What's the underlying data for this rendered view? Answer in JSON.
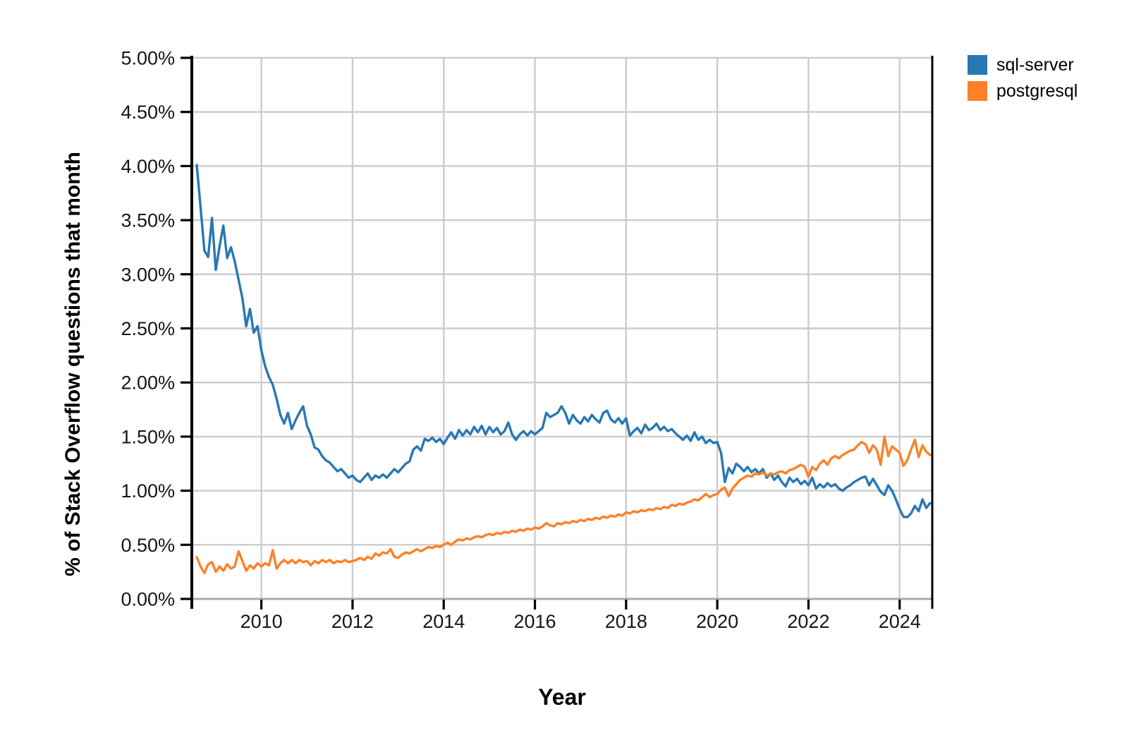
{
  "axes": {
    "x_title": "Year",
    "y_title": "% of Stack Overflow questions that month"
  },
  "legend": {
    "position": "top-right-outside",
    "items": [
      {
        "label": "sql-server",
        "color": "#2878b4"
      },
      {
        "label": "postgresql",
        "color": "#fd8128"
      }
    ]
  },
  "chart_data": {
    "type": "line",
    "title": "",
    "xlabel": "Year",
    "ylabel": "% of Stack Overflow questions that month",
    "xlim": [
      2008.49,
      2024.7
    ],
    "ylim": [
      0,
      5
    ],
    "grid": true,
    "grid_color": "#cccccc",
    "axis_color": "#000000",
    "legend_position": "top-right-outside",
    "x_ticks": [
      {
        "v": 2010,
        "label": "2010"
      },
      {
        "v": 2012,
        "label": "2012"
      },
      {
        "v": 2014,
        "label": "2014"
      },
      {
        "v": 2016,
        "label": "2016"
      },
      {
        "v": 2018,
        "label": "2018"
      },
      {
        "v": 2020,
        "label": "2020"
      },
      {
        "v": 2022,
        "label": "2022"
      },
      {
        "v": 2024,
        "label": "2024"
      }
    ],
    "y_ticks": [
      {
        "v": 0.0,
        "label": "0.00%"
      },
      {
        "v": 0.5,
        "label": "0.50%"
      },
      {
        "v": 1.0,
        "label": "1.00%"
      },
      {
        "v": 1.5,
        "label": "1.50%"
      },
      {
        "v": 2.0,
        "label": "2.00%"
      },
      {
        "v": 2.5,
        "label": "2.50%"
      },
      {
        "v": 3.0,
        "label": "3.00%"
      },
      {
        "v": 3.5,
        "label": "3.50%"
      },
      {
        "v": 4.0,
        "label": "4.00%"
      },
      {
        "v": 4.5,
        "label": "4.50%"
      },
      {
        "v": 5.0,
        "label": "5.00%"
      }
    ],
    "x_encoding": "monthly series; x = start_year + (start_month - 1 + index) / 12; y = percent of Stack Overflow questions that month",
    "series": [
      {
        "name": "sql-server",
        "color": "#2878b4",
        "start_year": 2008,
        "start_month": 8,
        "monthly_values": [
          4.01,
          3.62,
          3.22,
          3.16,
          3.52,
          3.04,
          3.26,
          3.45,
          3.15,
          3.25,
          3.12,
          2.95,
          2.78,
          2.52,
          2.68,
          2.46,
          2.52,
          2.3,
          2.15,
          2.05,
          1.98,
          1.85,
          1.7,
          1.62,
          1.72,
          1.57,
          1.65,
          1.72,
          1.78,
          1.6,
          1.52,
          1.4,
          1.38,
          1.32,
          1.28,
          1.26,
          1.22,
          1.18,
          1.2,
          1.16,
          1.12,
          1.14,
          1.1,
          1.08,
          1.12,
          1.16,
          1.1,
          1.14,
          1.12,
          1.15,
          1.12,
          1.16,
          1.2,
          1.17,
          1.21,
          1.25,
          1.27,
          1.38,
          1.41,
          1.37,
          1.48,
          1.46,
          1.49,
          1.45,
          1.48,
          1.43,
          1.49,
          1.54,
          1.48,
          1.56,
          1.51,
          1.56,
          1.52,
          1.59,
          1.54,
          1.6,
          1.52,
          1.59,
          1.54,
          1.58,
          1.52,
          1.55,
          1.63,
          1.52,
          1.47,
          1.52,
          1.55,
          1.51,
          1.55,
          1.52,
          1.55,
          1.58,
          1.72,
          1.68,
          1.7,
          1.72,
          1.78,
          1.72,
          1.62,
          1.7,
          1.65,
          1.62,
          1.68,
          1.64,
          1.7,
          1.66,
          1.63,
          1.72,
          1.74,
          1.66,
          1.63,
          1.67,
          1.62,
          1.67,
          1.51,
          1.55,
          1.58,
          1.53,
          1.61,
          1.56,
          1.58,
          1.62,
          1.56,
          1.59,
          1.55,
          1.57,
          1.53,
          1.5,
          1.47,
          1.51,
          1.46,
          1.54,
          1.47,
          1.5,
          1.44,
          1.47,
          1.44,
          1.45,
          1.35,
          1.08,
          1.21,
          1.16,
          1.25,
          1.22,
          1.18,
          1.22,
          1.17,
          1.2,
          1.16,
          1.2,
          1.12,
          1.16,
          1.1,
          1.14,
          1.08,
          1.04,
          1.12,
          1.08,
          1.11,
          1.06,
          1.09,
          1.05,
          1.12,
          1.02,
          1.06,
          1.03,
          1.07,
          1.04,
          1.06,
          1.02,
          1.0,
          1.03,
          1.05,
          1.08,
          1.1,
          1.12,
          1.13,
          1.05,
          1.11,
          1.05,
          0.99,
          0.96,
          1.05,
          1.0,
          0.92,
          0.83,
          0.76,
          0.755,
          0.79,
          0.86,
          0.81,
          0.92,
          0.84,
          0.885
        ]
      },
      {
        "name": "postgresql",
        "color": "#fd8128",
        "start_year": 2008,
        "start_month": 8,
        "monthly_values": [
          0.385,
          0.3,
          0.24,
          0.32,
          0.34,
          0.25,
          0.3,
          0.26,
          0.32,
          0.28,
          0.3,
          0.44,
          0.35,
          0.26,
          0.31,
          0.28,
          0.33,
          0.3,
          0.33,
          0.31,
          0.45,
          0.28,
          0.33,
          0.36,
          0.33,
          0.36,
          0.33,
          0.36,
          0.34,
          0.35,
          0.31,
          0.35,
          0.33,
          0.36,
          0.34,
          0.36,
          0.33,
          0.35,
          0.34,
          0.36,
          0.34,
          0.35,
          0.36,
          0.38,
          0.36,
          0.39,
          0.37,
          0.42,
          0.4,
          0.43,
          0.42,
          0.46,
          0.39,
          0.38,
          0.41,
          0.43,
          0.42,
          0.44,
          0.46,
          0.44,
          0.46,
          0.48,
          0.47,
          0.49,
          0.48,
          0.5,
          0.52,
          0.5,
          0.53,
          0.55,
          0.54,
          0.56,
          0.55,
          0.57,
          0.58,
          0.57,
          0.59,
          0.6,
          0.59,
          0.61,
          0.6,
          0.62,
          0.61,
          0.63,
          0.62,
          0.64,
          0.63,
          0.65,
          0.64,
          0.66,
          0.65,
          0.67,
          0.7,
          0.68,
          0.67,
          0.7,
          0.69,
          0.71,
          0.7,
          0.72,
          0.71,
          0.73,
          0.72,
          0.74,
          0.73,
          0.75,
          0.74,
          0.76,
          0.75,
          0.77,
          0.76,
          0.78,
          0.77,
          0.8,
          0.79,
          0.81,
          0.8,
          0.82,
          0.81,
          0.83,
          0.82,
          0.84,
          0.83,
          0.85,
          0.84,
          0.87,
          0.86,
          0.88,
          0.87,
          0.89,
          0.9,
          0.92,
          0.91,
          0.94,
          0.97,
          0.94,
          0.96,
          0.97,
          1.01,
          1.03,
          0.95,
          1.02,
          1.06,
          1.1,
          1.12,
          1.14,
          1.13,
          1.16,
          1.15,
          1.17,
          1.14,
          1.16,
          1.15,
          1.17,
          1.18,
          1.16,
          1.19,
          1.2,
          1.22,
          1.24,
          1.22,
          1.13,
          1.22,
          1.19,
          1.25,
          1.28,
          1.24,
          1.3,
          1.32,
          1.3,
          1.33,
          1.35,
          1.37,
          1.38,
          1.42,
          1.45,
          1.43,
          1.35,
          1.42,
          1.38,
          1.24,
          1.5,
          1.32,
          1.41,
          1.38,
          1.35,
          1.23,
          1.28,
          1.38,
          1.47,
          1.31,
          1.42,
          1.36,
          1.33
        ]
      }
    ]
  }
}
